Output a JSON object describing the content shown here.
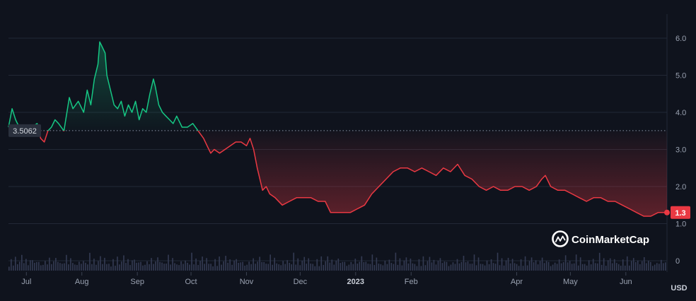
{
  "chart_data": {
    "type": "line",
    "currency": "USD",
    "reference_value": 3.5062,
    "current_value": 1.3,
    "reference_label": "3.5062",
    "current_label": "1.3",
    "ylim": [
      0,
      6.4
    ],
    "y_ticks": [
      0,
      1.0,
      2.0,
      3.0,
      4.0,
      5.0,
      6.0
    ],
    "y_tick_labels": [
      "0",
      "1.0",
      "2.0",
      "3.0",
      "4.0",
      "5.0",
      "6.0"
    ],
    "x_range": [
      "2022-06-21",
      "2023-06-24"
    ],
    "x_ticks": [
      {
        "date": "2022-07-01",
        "label": "Jul",
        "bold": false
      },
      {
        "date": "2022-08-01",
        "label": "Aug",
        "bold": false
      },
      {
        "date": "2022-09-01",
        "label": "Sep",
        "bold": false
      },
      {
        "date": "2022-10-01",
        "label": "Oct",
        "bold": false
      },
      {
        "date": "2022-11-01",
        "label": "Nov",
        "bold": false
      },
      {
        "date": "2022-12-01",
        "label": "Dec",
        "bold": false
      },
      {
        "date": "2023-01-01",
        "label": "2023",
        "bold": true
      },
      {
        "date": "2023-02-01",
        "label": "Feb",
        "bold": false
      },
      {
        "date": "2023-04-01",
        "label": "Apr",
        "bold": false
      },
      {
        "date": "2023-05-01",
        "label": "May",
        "bold": false
      },
      {
        "date": "2023-06-01",
        "label": "Jun",
        "bold": false
      }
    ],
    "price": {
      "x": [
        "2022-06-21",
        "2022-06-23",
        "2022-06-25",
        "2022-06-27",
        "2022-06-29",
        "2022-07-01",
        "2022-07-04",
        "2022-07-07",
        "2022-07-09",
        "2022-07-11",
        "2022-07-13",
        "2022-07-15",
        "2022-07-17",
        "2022-07-19",
        "2022-07-22",
        "2022-07-25",
        "2022-07-27",
        "2022-07-30",
        "2022-08-02",
        "2022-08-04",
        "2022-08-06",
        "2022-08-08",
        "2022-08-10",
        "2022-08-11",
        "2022-08-12",
        "2022-08-14",
        "2022-08-15",
        "2022-08-17",
        "2022-08-19",
        "2022-08-21",
        "2022-08-23",
        "2022-08-25",
        "2022-08-27",
        "2022-08-29",
        "2022-08-31",
        "2022-09-02",
        "2022-09-04",
        "2022-09-06",
        "2022-09-08",
        "2022-09-10",
        "2022-09-11",
        "2022-09-13",
        "2022-09-15",
        "2022-09-17",
        "2022-09-19",
        "2022-09-21",
        "2022-09-23",
        "2022-09-26",
        "2022-09-29",
        "2022-10-02",
        "2022-10-05",
        "2022-10-08",
        "2022-10-10",
        "2022-10-12",
        "2022-10-14",
        "2022-10-17",
        "2022-10-20",
        "2022-10-23",
        "2022-10-26",
        "2022-10-29",
        "2022-11-01",
        "2022-11-03",
        "2022-11-05",
        "2022-11-07",
        "2022-11-09",
        "2022-11-10",
        "2022-11-12",
        "2022-11-14",
        "2022-11-17",
        "2022-11-21",
        "2022-11-25",
        "2022-11-29",
        "2022-12-03",
        "2022-12-07",
        "2022-12-11",
        "2022-12-15",
        "2022-12-18",
        "2022-12-21",
        "2022-12-25",
        "2022-12-29",
        "2023-01-02",
        "2023-01-06",
        "2023-01-10",
        "2023-01-14",
        "2023-01-18",
        "2023-01-22",
        "2023-01-26",
        "2023-01-30",
        "2023-02-03",
        "2023-02-07",
        "2023-02-11",
        "2023-02-15",
        "2023-02-19",
        "2023-02-23",
        "2023-02-27",
        "2023-03-03",
        "2023-03-07",
        "2023-03-11",
        "2023-03-15",
        "2023-03-19",
        "2023-03-23",
        "2023-03-27",
        "2023-03-31",
        "2023-04-04",
        "2023-04-08",
        "2023-04-12",
        "2023-04-15",
        "2023-04-17",
        "2023-04-20",
        "2023-04-24",
        "2023-04-28",
        "2023-05-02",
        "2023-05-06",
        "2023-05-10",
        "2023-05-14",
        "2023-05-18",
        "2023-05-22",
        "2023-05-26",
        "2023-05-30",
        "2023-06-03",
        "2023-06-07",
        "2023-06-11",
        "2023-06-15",
        "2023-06-19",
        "2023-06-22",
        "2023-06-24"
      ],
      "y": [
        3.6,
        4.1,
        3.8,
        3.6,
        3.5,
        3.5,
        3.6,
        3.7,
        3.3,
        3.2,
        3.5,
        3.6,
        3.8,
        3.7,
        3.5,
        4.4,
        4.1,
        4.3,
        4.0,
        4.6,
        4.2,
        4.9,
        5.3,
        5.9,
        5.8,
        5.6,
        5.0,
        4.6,
        4.2,
        4.1,
        4.3,
        3.9,
        4.2,
        4.0,
        4.3,
        3.8,
        4.1,
        4.0,
        4.5,
        4.9,
        4.7,
        4.2,
        4.0,
        3.9,
        3.8,
        3.7,
        3.9,
        3.6,
        3.6,
        3.7,
        3.5,
        3.3,
        3.1,
        2.9,
        3.0,
        2.9,
        3.0,
        3.1,
        3.2,
        3.2,
        3.1,
        3.3,
        3.0,
        2.5,
        2.1,
        1.9,
        2.0,
        1.8,
        1.7,
        1.5,
        1.6,
        1.7,
        1.7,
        1.7,
        1.6,
        1.6,
        1.3,
        1.3,
        1.3,
        1.3,
        1.4,
        1.5,
        1.8,
        2.0,
        2.2,
        2.4,
        2.5,
        2.5,
        2.4,
        2.5,
        2.4,
        2.3,
        2.5,
        2.4,
        2.6,
        2.3,
        2.2,
        2.0,
        1.9,
        2.0,
        1.9,
        1.9,
        2.0,
        2.0,
        1.9,
        2.0,
        2.2,
        2.3,
        2.0,
        1.9,
        1.9,
        1.8,
        1.7,
        1.6,
        1.7,
        1.7,
        1.6,
        1.6,
        1.5,
        1.4,
        1.3,
        1.2,
        1.2,
        1.3,
        1.3,
        1.3
      ]
    },
    "volume_pattern": [
      0.25,
      0.55,
      0.3,
      0.7,
      0.35,
      0.45,
      0.9,
      0.4,
      0.6,
      0.3,
      0.5,
      0.8,
      0.35,
      0.65,
      0.4,
      0.3
    ]
  },
  "branding": {
    "name": "CoinMarketCap"
  }
}
